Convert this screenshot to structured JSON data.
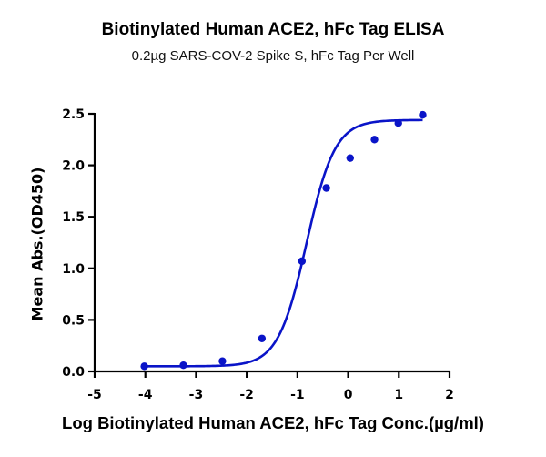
{
  "chart_data": {
    "type": "scatter",
    "title": "Biotinylated Human ACE2, hFc Tag ELISA",
    "subtitle": "0.2µg SARS-COV-2 Spike S, hFc Tag Per Well",
    "xlabel": "Log Biotinylated Human ACE2, hFc Tag Conc.(µg/ml)",
    "ylabel": "Mean Abs.(OD450)",
    "xlim": [
      -5,
      2
    ],
    "ylim": [
      0,
      2.5
    ],
    "x_ticks": [
      -5,
      -4,
      -3,
      -2,
      -1,
      0,
      1,
      2
    ],
    "y_ticks": [
      0.0,
      0.5,
      1.0,
      1.5,
      2.0,
      2.5
    ],
    "grid": false,
    "legend": null,
    "color": "#0a14c8",
    "series": [
      {
        "name": "Mean Abs.(OD450)",
        "x": [
          -4.02,
          -3.25,
          -2.48,
          -1.7,
          -0.91,
          -0.43,
          0.04,
          0.52,
          0.99,
          1.47
        ],
        "values": [
          0.05,
          0.06,
          0.1,
          0.32,
          1.07,
          1.78,
          2.07,
          2.25,
          2.41,
          2.49
        ],
        "fit": "4PL sigmoidal curve"
      }
    ],
    "fit_params": {
      "bottom": 0.05,
      "top": 2.44,
      "logEC50": -0.82,
      "hill": 1.55
    }
  },
  "labels": {
    "title": "Biotinylated Human ACE2, hFc Tag ELISA",
    "subtitle": "0.2µg SARS-COV-2 Spike S, hFc Tag Per Well",
    "xlabel": "Log Biotinylated Human ACE2, hFc Tag Conc.(µg/ml)",
    "ylabel": "Mean Abs.(OD450)"
  }
}
